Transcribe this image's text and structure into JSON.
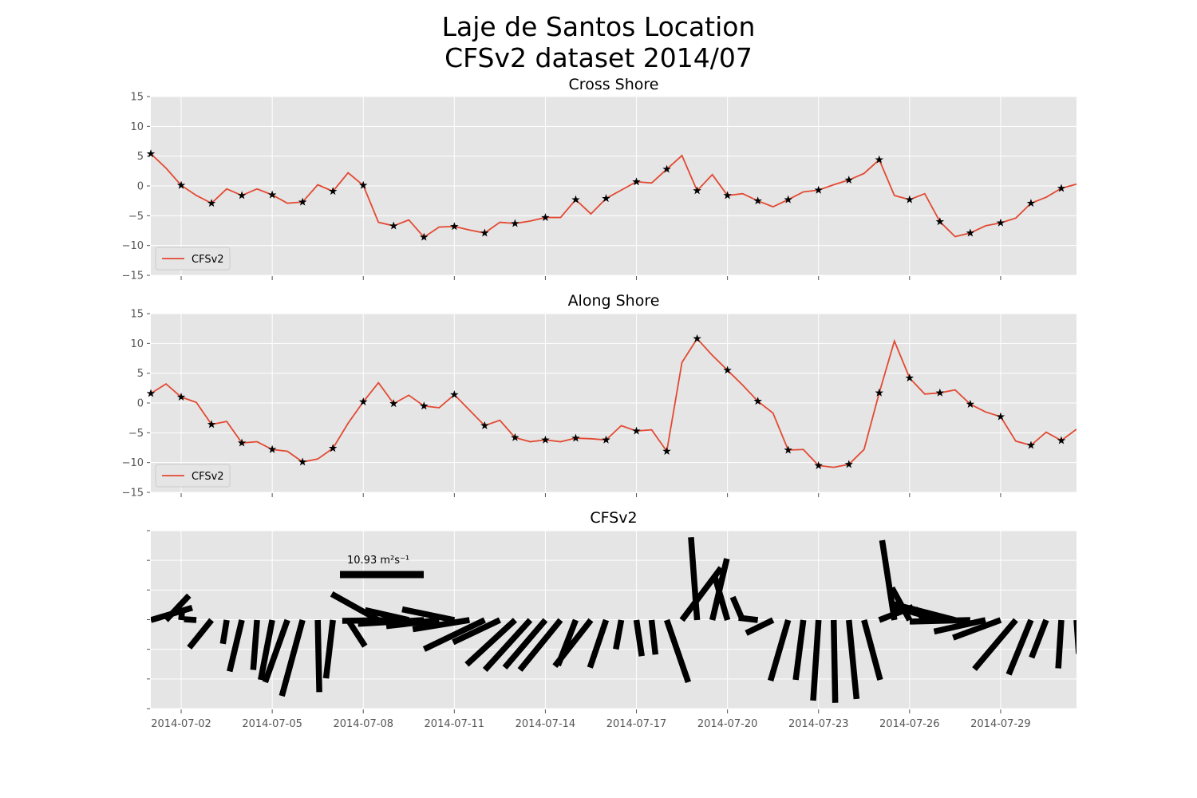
{
  "figure": {
    "title_line1": "Laje de Santos Location",
    "title_line2": "CFSv2 dataset 2014/07"
  },
  "chart_data": [
    {
      "type": "line",
      "title": "Cross Shore",
      "xlabel": "",
      "ylabel": "",
      "x_start": "2014-07-01T00:00",
      "x_end": "2014-07-31T12:00",
      "step_hours": 12,
      "ylim": [
        -15,
        15
      ],
      "yticks": [
        15,
        10,
        5,
        0,
        -5,
        -10,
        -15
      ],
      "ytick_labels": [
        "15",
        "10",
        "5",
        "0",
        "−5",
        "−10",
        "−15"
      ],
      "grid": true,
      "legend": {
        "placement": "lower-left",
        "entries": [
          "CFSv2"
        ]
      },
      "series": [
        {
          "name": "CFSv2",
          "color": "#e24a33",
          "marker": "star",
          "marker_every": 2,
          "values": [
            5.4,
            3.0,
            0.1,
            -1.6,
            -2.9,
            -0.5,
            -1.6,
            -0.5,
            -1.5,
            -2.9,
            -2.7,
            0.2,
            -0.9,
            2.2,
            0.1,
            -6.1,
            -6.7,
            -5.7,
            -8.6,
            -6.9,
            -6.8,
            -7.4,
            -7.9,
            -6.1,
            -6.3,
            -5.9,
            -5.3,
            -5.3,
            -2.3,
            -4.7,
            -2.1,
            -0.7,
            0.7,
            0.5,
            2.8,
            5.1,
            -0.8,
            1.9,
            -1.6,
            -1.3,
            -2.5,
            -3.5,
            -2.3,
            -1.0,
            -0.7,
            0.2,
            1.0,
            2.1,
            4.4,
            -1.6,
            -2.3,
            -1.3,
            -6.0,
            -8.5,
            -7.9,
            -6.7,
            -6.2,
            -5.4,
            -2.9,
            -1.9,
            -0.4,
            0.3
          ]
        }
      ]
    },
    {
      "type": "line",
      "title": "Along Shore",
      "xlabel": "",
      "ylabel": "",
      "x_start": "2014-07-01T00:00",
      "x_end": "2014-07-31T12:00",
      "step_hours": 12,
      "ylim": [
        -15,
        15
      ],
      "yticks": [
        15,
        10,
        5,
        0,
        -5,
        -10,
        -15
      ],
      "ytick_labels": [
        "15",
        "10",
        "5",
        "0",
        "−5",
        "−10",
        "−15"
      ],
      "grid": true,
      "legend": {
        "placement": "lower-left",
        "entries": [
          "CFSv2"
        ]
      },
      "series": [
        {
          "name": "CFSv2",
          "color": "#e24a33",
          "marker": "star",
          "marker_every": 2,
          "values": [
            1.6,
            3.2,
            1.0,
            0.1,
            -3.6,
            -3.1,
            -6.7,
            -6.5,
            -7.8,
            -8.1,
            -9.9,
            -9.4,
            -7.6,
            -3.4,
            0.2,
            3.4,
            -0.1,
            1.3,
            -0.5,
            -0.8,
            1.4,
            -1.2,
            -3.8,
            -2.9,
            -5.8,
            -6.5,
            -6.2,
            -6.5,
            -5.9,
            -6.0,
            -6.2,
            -3.8,
            -4.7,
            -4.5,
            -8.1,
            6.8,
            10.8,
            8.0,
            5.5,
            3.0,
            0.3,
            -1.7,
            -7.9,
            -7.8,
            -10.5,
            -10.8,
            -10.3,
            -7.8,
            1.7,
            10.4,
            4.2,
            1.5,
            1.7,
            2.2,
            -0.2,
            -1.5,
            -2.3,
            -6.4,
            -7.1,
            -4.9,
            -6.3,
            -4.4
          ]
        }
      ]
    },
    {
      "type": "quiver",
      "title": "CFSv2",
      "xlabel": "",
      "ylabel": "",
      "x_start": "2014-07-01T00:00",
      "x_end": "2014-07-31T12:00",
      "step_hours": 12,
      "ylim": [
        -1,
        1
      ],
      "yticks_count": 7,
      "grid": true,
      "color": "#000000",
      "scale_key": {
        "value": 10.93,
        "label": "10.93",
        "unit": "m²s⁻¹",
        "position": "top-left"
      },
      "vectors_u_component": "Cross Shore",
      "vectors_v_component": "Along Shore"
    }
  ],
  "x_axis": {
    "tick_dates": [
      "2014-07-02",
      "2014-07-05",
      "2014-07-08",
      "2014-07-11",
      "2014-07-14",
      "2014-07-17",
      "2014-07-20",
      "2014-07-23",
      "2014-07-26",
      "2014-07-29"
    ]
  },
  "colors": {
    "axes_background": "#e5e5e5",
    "grid": "#ffffff",
    "line": "#e24a33",
    "tick_label": "#555555"
  }
}
